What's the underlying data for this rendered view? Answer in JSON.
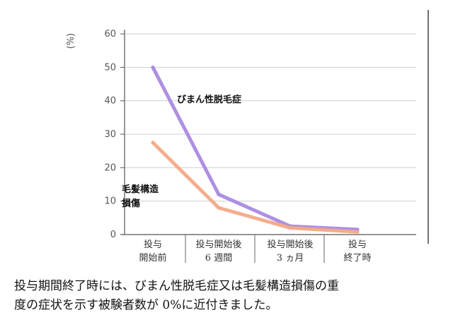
{
  "chart_data": {
    "type": "line",
    "y_unit_label": "(%)",
    "ylim": [
      0,
      60
    ],
    "yticks": [
      "0",
      "10",
      "20",
      "30",
      "40",
      "50",
      "60"
    ],
    "categories": [
      [
        "投与",
        "開始前"
      ],
      [
        "投与開始後",
        "6 週間"
      ],
      [
        "投与開始後",
        "3 ヵ月"
      ],
      [
        "投与",
        "終了時"
      ]
    ],
    "series": [
      {
        "name_lines": [
          "びまん性脱毛症"
        ],
        "color": "#a98ae0",
        "values": [
          50,
          12,
          2.5,
          1.5
        ]
      },
      {
        "name_lines": [
          "毛髪構造",
          "損傷"
        ],
        "color": "#f3a987",
        "values": [
          27.5,
          8,
          2,
          0.8
        ]
      }
    ]
  },
  "caption": {
    "line1": "投与期間終了時には、びまん性脱毛症又は毛髪構造損傷の重",
    "line2": "度の症状を示す被験者数が 0%に近付きました。"
  }
}
